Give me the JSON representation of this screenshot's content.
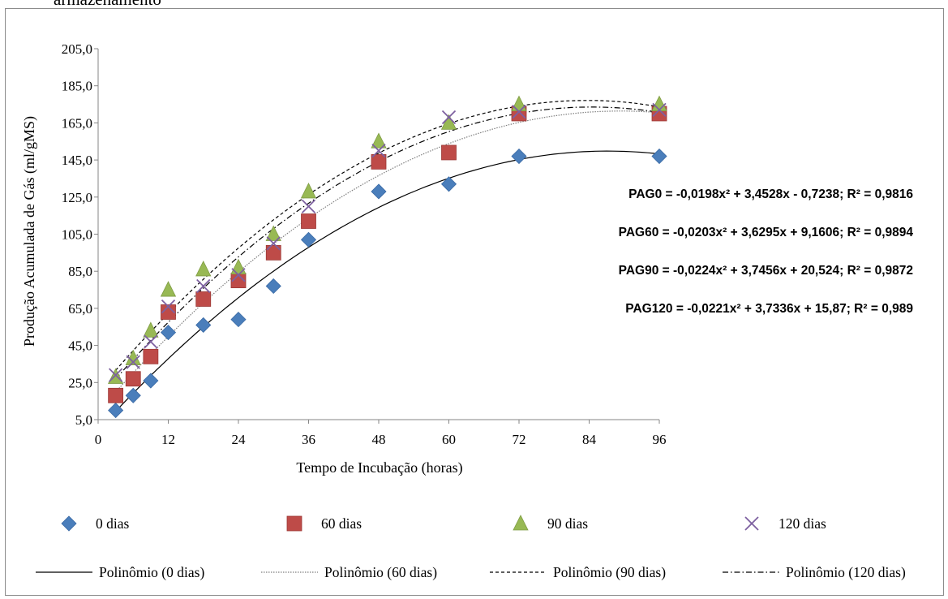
{
  "caption_fragment": "armazenamento",
  "chart_data": {
    "type": "scatter",
    "title": "",
    "xlabel": "Tempo de Incubação (horas)",
    "ylabel": "Produção Acumulada de Gás (ml/gMS)",
    "xlim": [
      0,
      96
    ],
    "ylim": [
      5,
      205
    ],
    "x_ticks": [
      "0",
      "12",
      "24",
      "36",
      "48",
      "60",
      "72",
      "84",
      "96"
    ],
    "y_ticks": [
      "5,0",
      "25,0",
      "45,0",
      "65,0",
      "85,0",
      "105,0",
      "125,0",
      "145,0",
      "165,0",
      "185,0",
      "205,0"
    ],
    "grid": false,
    "legend_position": "bottom",
    "x": [
      3,
      6,
      9,
      12,
      18,
      24,
      30,
      36,
      48,
      60,
      72,
      96
    ],
    "series": [
      {
        "name": "0 dias",
        "marker": "diamond",
        "color": "#4a7ebb",
        "values": [
          10,
          18,
          26,
          52,
          56,
          59,
          77,
          102,
          128,
          132,
          147,
          147
        ]
      },
      {
        "name": "60 dias",
        "marker": "square",
        "color": "#be4b48",
        "values": [
          18,
          27,
          39,
          63,
          70,
          80,
          95,
          112,
          144,
          149,
          170,
          170
        ]
      },
      {
        "name": "90 dias",
        "marker": "triangle",
        "color": "#98b954",
        "values": [
          28,
          38,
          53,
          75,
          86,
          87,
          105,
          128,
          155,
          165,
          175,
          175
        ]
      },
      {
        "name": "120 dias",
        "marker": "x",
        "color": "#7d60a0",
        "values": [
          29,
          36,
          47,
          66,
          77,
          83,
          100,
          120,
          150,
          168,
          171,
          172
        ]
      }
    ],
    "trendlines": [
      {
        "name": "Polinômio (0 dias)",
        "style": "solid",
        "coef": [
          -0.0198,
          3.4528,
          -0.7238
        ]
      },
      {
        "name": "Polinômio (60 dias)",
        "style": "dotted",
        "coef": [
          -0.0203,
          3.6295,
          9.1606
        ]
      },
      {
        "name": "Polinômio (90 dias)",
        "style": "dashed",
        "coef": [
          -0.0224,
          3.7456,
          20.524
        ]
      },
      {
        "name": "Polinômio (120 dias)",
        "style": "dashdot",
        "coef": [
          -0.0221,
          3.7336,
          15.87
        ]
      }
    ],
    "annotations": [
      "PAG0 = -0,0198x² + 3,4528x - 0,7238; R² = 0,9816",
      "PAG60 = -0,0203x² + 3,6295x + 9,1606; R² = 0,9894",
      "PAG90 = -0,0224x² + 3,7456x + 20,524; R² = 0,9872",
      "PAG120 = -0,0221x² + 3,7336x + 15,87; R² = 0,989"
    ]
  }
}
